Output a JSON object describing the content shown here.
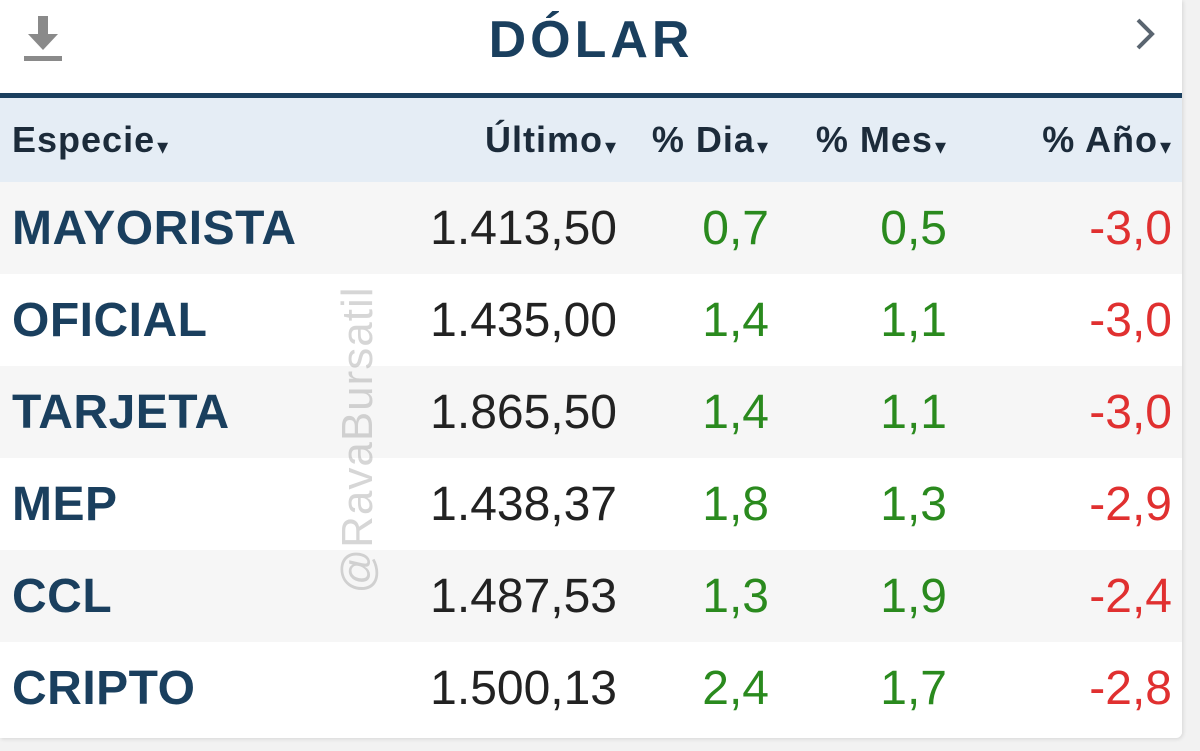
{
  "header": {
    "title": "DÓLAR",
    "download_icon": "download-icon",
    "next_icon": "chevron-right-icon"
  },
  "table": {
    "columns": [
      {
        "label": "Especie",
        "sort_icon": "▾"
      },
      {
        "label": "Último",
        "sort_icon": "▾"
      },
      {
        "label": "% Dia",
        "sort_icon": "▾"
      },
      {
        "label": "% Mes",
        "sort_icon": "▾"
      },
      {
        "label": "% Año",
        "sort_icon": "▾"
      }
    ],
    "rows": [
      {
        "especie": "MAYORISTA",
        "ultimo": "1.413,50",
        "dia": "0,7",
        "mes": "0,5",
        "ano": "-3,0"
      },
      {
        "especie": "OFICIAL",
        "ultimo": "1.435,00",
        "dia": "1,4",
        "mes": "1,1",
        "ano": "-3,0"
      },
      {
        "especie": "TARJETA",
        "ultimo": "1.865,50",
        "dia": "1,4",
        "mes": "1,1",
        "ano": "-3,0"
      },
      {
        "especie": "MEP",
        "ultimo": "1.438,37",
        "dia": "1,8",
        "mes": "1,3",
        "ano": "-2,9"
      },
      {
        "especie": "CCL",
        "ultimo": "1.487,53",
        "dia": "1,3",
        "mes": "1,9",
        "ano": "-2,4"
      },
      {
        "especie": "CRIPTO",
        "ultimo": "1.500,13",
        "dia": "2,4",
        "mes": "1,7",
        "ano": "-2,8"
      }
    ]
  },
  "watermark": "@RavaBursatil",
  "colors": {
    "accent": "#1a3f5e",
    "positive": "#2a8a1e",
    "negative": "#e03030",
    "header_bg": "#e5edf5"
  }
}
